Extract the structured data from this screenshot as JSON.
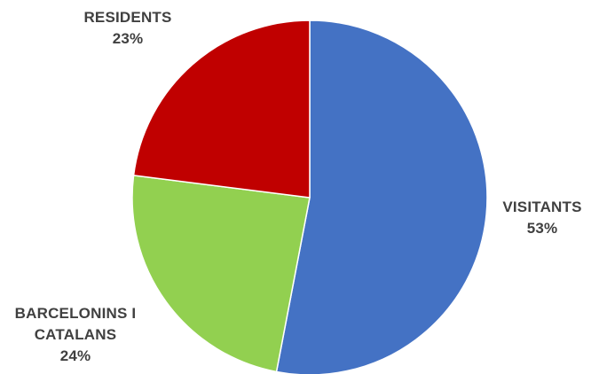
{
  "chart_data": {
    "type": "pie",
    "title": "",
    "start_angle_deg": 0,
    "direction": "clockwise",
    "slices": [
      {
        "name": "VISITANTS",
        "value": 53,
        "label": "53%",
        "color": "#4472C4"
      },
      {
        "name": "BARCELONINS I CATALANS",
        "value": 24,
        "label": "24%",
        "color": "#92D050"
      },
      {
        "name": "RESIDENTS",
        "value": 23,
        "label": "23%",
        "color": "#C00000"
      }
    ],
    "labels": {
      "visitants": {
        "line1": "VISITANTS",
        "pct": "53%"
      },
      "residents": {
        "line1": "RESIDENTS",
        "pct": "23%"
      },
      "barcelonins": {
        "line1": "BARCELONINS I",
        "line2": "CATALANS",
        "pct": "24%"
      }
    }
  }
}
